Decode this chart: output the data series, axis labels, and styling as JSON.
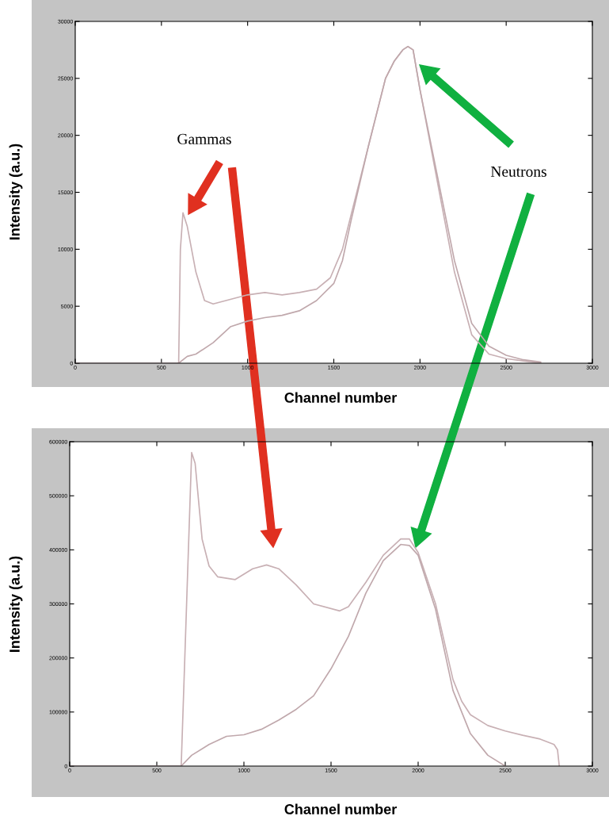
{
  "chart_data": [
    {
      "type": "line",
      "xlabel": "Channel number",
      "ylabel": "Intensity (a.u.)",
      "xlim": [
        0,
        3000
      ],
      "ylim": [
        0,
        30000
      ],
      "xticks": [
        0,
        500,
        1000,
        1500,
        2000,
        2500,
        3000
      ],
      "yticks": [
        0,
        5000,
        10000,
        15000,
        20000,
        25000,
        30000
      ],
      "grid": false,
      "legend": false,
      "annotations": [
        "Gammas",
        "Neutrons"
      ],
      "series": [
        {
          "color": "#c8b0b4",
          "x": [
            0,
            590,
            600,
            610,
            625,
            650,
            700,
            750,
            800,
            900,
            1000,
            1100,
            1200,
            1300,
            1400,
            1480,
            1550,
            1600,
            1700,
            1800,
            1850,
            1900,
            1930,
            1960,
            2000,
            2100,
            2200,
            2300,
            2400,
            2500,
            2600,
            2700
          ],
          "values": [
            0,
            0,
            0,
            10000,
            13200,
            12000,
            8000,
            5500,
            5200,
            5600,
            6000,
            6200,
            6000,
            6200,
            6500,
            7500,
            10000,
            13000,
            19000,
            25000,
            26500,
            27500,
            27800,
            27500,
            24000,
            16000,
            8000,
            2500,
            800,
            400,
            200,
            0
          ]
        },
        {
          "color": "#c0a8ac",
          "x": [
            600,
            650,
            700,
            800,
            900,
            1000,
            1100,
            1200,
            1300,
            1400,
            1500,
            1550,
            1600,
            1700,
            1800,
            1850,
            1900,
            1930,
            1960,
            2000,
            2100,
            2200,
            2300,
            2400,
            2500,
            2600,
            2700
          ],
          "values": [
            0,
            600,
            800,
            1800,
            3200,
            3700,
            4000,
            4200,
            4600,
            5500,
            7000,
            9000,
            12500,
            19000,
            25000,
            26500,
            27500,
            27800,
            27500,
            24000,
            16500,
            9000,
            3500,
            1500,
            700,
            300,
            100
          ]
        }
      ]
    },
    {
      "type": "line",
      "xlabel": "Channel number",
      "ylabel": "Intensity (a.u.)",
      "xlim": [
        0,
        3000
      ],
      "ylim": [
        0,
        600000
      ],
      "xticks": [
        0,
        500,
        1000,
        1500,
        2000,
        2500,
        3000
      ],
      "yticks": [
        0,
        100000,
        200000,
        300000,
        400000,
        500000,
        600000
      ],
      "grid": false,
      "legend": false,
      "series": [
        {
          "color": "#c8b0b4",
          "x": [
            0,
            640,
            700,
            720,
            760,
            800,
            850,
            950,
            1050,
            1130,
            1200,
            1300,
            1400,
            1550,
            1600,
            1700,
            1800,
            1900,
            1950,
            2000,
            2100,
            2200,
            2250,
            2300,
            2400,
            2500,
            2600,
            2700,
            2780,
            2800,
            2810
          ],
          "values": [
            0,
            0,
            580000,
            560000,
            420000,
            370000,
            350000,
            345000,
            365000,
            372000,
            365000,
            335000,
            300000,
            287000,
            295000,
            340000,
            390000,
            420000,
            420000,
            395000,
            300000,
            160000,
            120000,
            95000,
            75000,
            65000,
            57000,
            50000,
            40000,
            30000,
            0
          ]
        },
        {
          "color": "#c0a8ac",
          "x": [
            640,
            700,
            800,
            900,
            1000,
            1100,
            1200,
            1300,
            1400,
            1500,
            1600,
            1700,
            1800,
            1900,
            1950,
            2000,
            2100,
            2200,
            2300,
            2400,
            2500
          ],
          "values": [
            0,
            20000,
            40000,
            55000,
            58000,
            68000,
            85000,
            105000,
            130000,
            180000,
            240000,
            320000,
            380000,
            410000,
            408000,
            390000,
            290000,
            140000,
            60000,
            20000,
            0
          ]
        }
      ]
    }
  ]
}
